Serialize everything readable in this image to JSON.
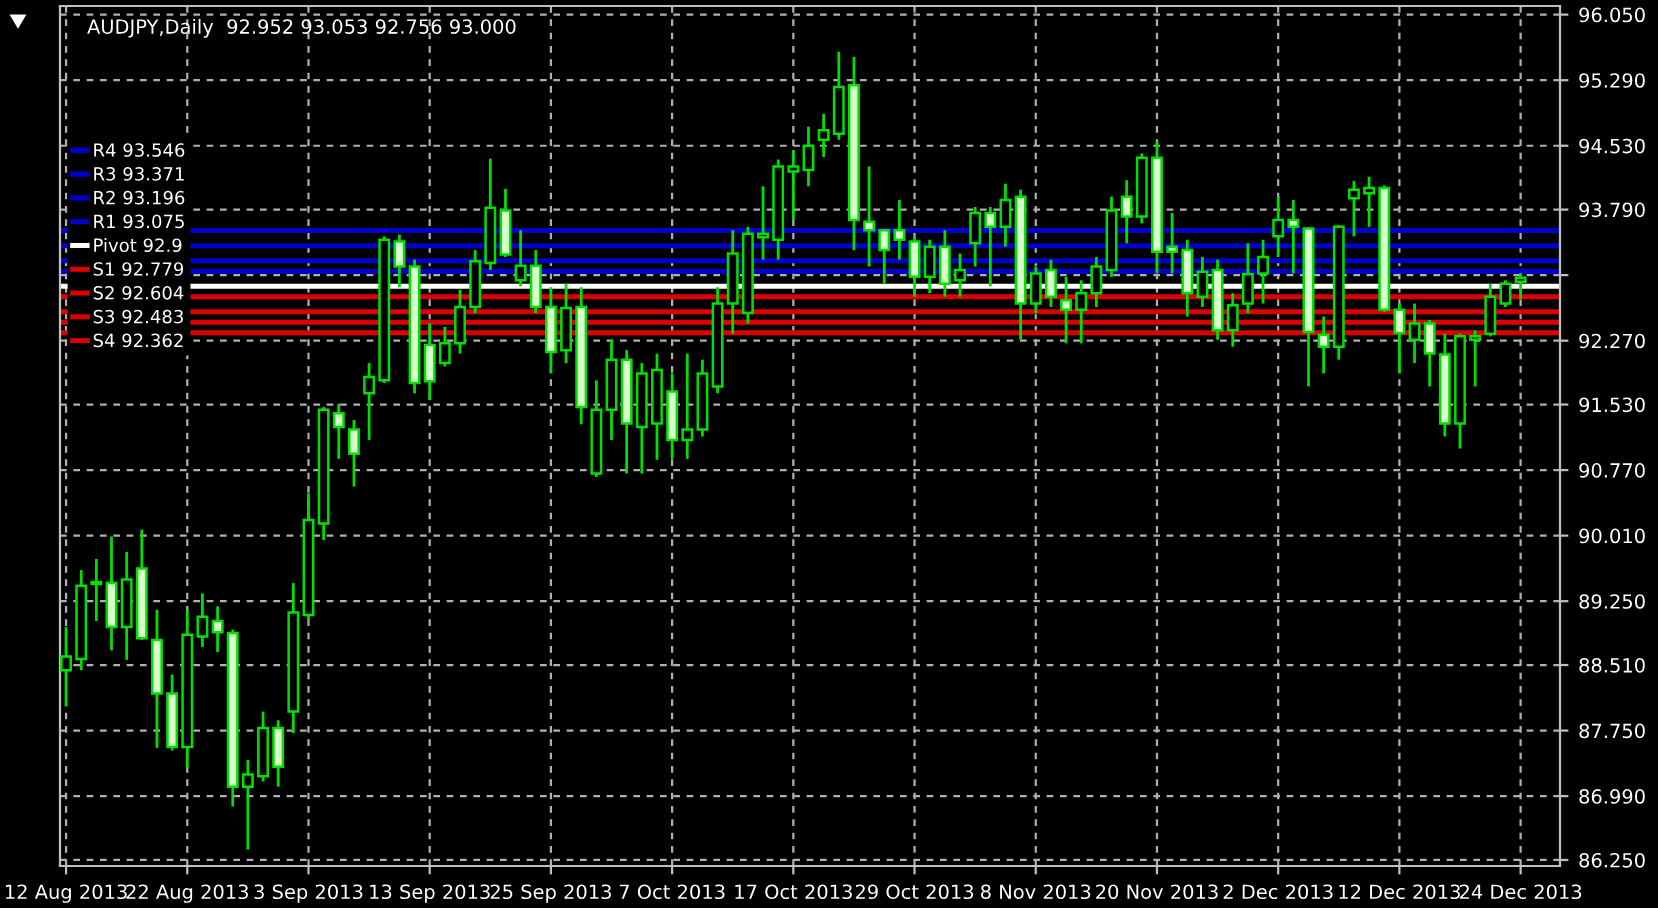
{
  "chart_data": {
    "type": "candlestick",
    "title": "AUDJPY,Daily  92.952 93.053 92.756 93.000",
    "color": "#00e000",
    "categories": [
      "12 Aug 2013",
      null,
      null,
      null,
      null,
      null,
      null,
      null,
      "22 Aug 2013",
      null,
      null,
      null,
      null,
      null,
      null,
      null,
      "3 Sep 2013",
      null,
      null,
      null,
      null,
      null,
      null,
      null,
      "13 Sep 2013",
      null,
      null,
      null,
      null,
      null,
      null,
      null,
      "25 Sep 2013",
      null,
      null,
      null,
      null,
      null,
      null,
      null,
      "7 Oct 2013",
      null,
      null,
      null,
      null,
      null,
      null,
      null,
      "17 Oct 2013",
      null,
      null,
      null,
      null,
      null,
      null,
      null,
      "29 Oct 2013",
      null,
      null,
      null,
      null,
      null,
      null,
      null,
      "8 Nov 2013",
      null,
      null,
      null,
      null,
      null,
      null,
      null,
      "20 Nov 2013",
      null,
      null,
      null,
      null,
      null,
      null,
      null,
      "2 Dec 2013",
      null,
      null,
      null,
      null,
      null,
      null,
      null,
      "12 Dec 2013",
      null,
      null,
      null,
      null,
      null,
      null,
      null,
      "24 Dec 2013"
    ],
    "ohlc": [
      [
        88.45,
        88.95,
        88.03,
        88.61
      ],
      [
        88.58,
        89.61,
        88.45,
        89.43
      ],
      [
        89.45,
        89.74,
        89.02,
        89.47
      ],
      [
        89.46,
        90.0,
        88.68,
        88.95
      ],
      [
        88.95,
        89.82,
        88.57,
        89.5
      ],
      [
        89.63,
        90.08,
        88.8,
        88.82
      ],
      [
        88.8,
        89.15,
        87.55,
        88.18
      ],
      [
        88.18,
        88.4,
        87.52,
        87.56
      ],
      [
        87.56,
        89.15,
        87.32,
        88.86
      ],
      [
        88.84,
        89.34,
        88.72,
        89.07
      ],
      [
        89.02,
        89.19,
        88.66,
        88.89
      ],
      [
        88.88,
        88.92,
        86.87,
        87.1
      ],
      [
        87.1,
        87.41,
        86.37,
        87.24
      ],
      [
        87.22,
        87.97,
        87.16,
        87.78
      ],
      [
        87.78,
        87.87,
        87.1,
        87.33
      ],
      [
        87.97,
        89.46,
        87.72,
        89.12
      ],
      [
        89.09,
        90.5,
        89.03,
        90.19
      ],
      [
        90.15,
        91.5,
        89.96,
        91.47
      ],
      [
        91.43,
        91.54,
        90.9,
        91.27
      ],
      [
        91.24,
        91.35,
        90.58,
        90.96
      ],
      [
        91.66,
        92.01,
        91.12,
        91.85
      ],
      [
        91.81,
        93.48,
        91.78,
        93.44
      ],
      [
        93.42,
        93.5,
        92.89,
        93.13
      ],
      [
        93.13,
        93.21,
        91.66,
        91.78
      ],
      [
        92.22,
        92.47,
        91.58,
        91.8
      ],
      [
        92.01,
        92.43,
        91.97,
        92.24
      ],
      [
        92.24,
        92.86,
        92.12,
        92.66
      ],
      [
        92.66,
        93.32,
        92.59,
        93.19
      ],
      [
        93.17,
        94.38,
        93.09,
        93.81
      ],
      [
        93.78,
        94.03,
        93.24,
        93.27
      ],
      [
        92.97,
        93.55,
        92.9,
        93.14
      ],
      [
        93.14,
        93.32,
        92.59,
        92.66
      ],
      [
        92.66,
        92.89,
        91.89,
        92.14
      ],
      [
        92.16,
        92.93,
        92.01,
        92.65
      ],
      [
        92.66,
        92.89,
        91.3,
        91.5
      ],
      [
        90.73,
        91.81,
        90.69,
        91.47
      ],
      [
        91.47,
        92.28,
        91.12,
        92.05
      ],
      [
        92.05,
        92.16,
        90.73,
        91.31
      ],
      [
        91.27,
        92.01,
        90.73,
        91.89
      ],
      [
        91.31,
        92.12,
        90.89,
        91.93
      ],
      [
        91.68,
        91.89,
        90.9,
        91.12
      ],
      [
        91.12,
        92.12,
        90.9,
        91.24
      ],
      [
        91.24,
        92.05,
        91.16,
        91.89
      ],
      [
        91.74,
        92.89,
        91.66,
        92.7
      ],
      [
        92.7,
        93.55,
        92.35,
        93.28
      ],
      [
        92.59,
        93.59,
        92.47,
        93.51
      ],
      [
        93.47,
        94.06,
        93.21,
        93.51
      ],
      [
        93.44,
        94.37,
        93.21,
        94.29
      ],
      [
        94.23,
        94.48,
        93.67,
        94.29
      ],
      [
        94.25,
        94.75,
        94.06,
        94.53
      ],
      [
        94.6,
        94.9,
        94.4,
        94.71
      ],
      [
        94.67,
        95.62,
        94.6,
        95.21
      ],
      [
        95.23,
        95.56,
        93.32,
        93.67
      ],
      [
        93.65,
        94.29,
        93.13,
        93.55
      ],
      [
        93.55,
        93.55,
        92.93,
        93.32
      ],
      [
        93.55,
        93.9,
        93.21,
        93.44
      ],
      [
        93.42,
        93.48,
        92.78,
        93.01
      ],
      [
        93.01,
        93.44,
        92.82,
        93.36
      ],
      [
        93.36,
        93.55,
        92.78,
        92.93
      ],
      [
        92.97,
        93.28,
        92.78,
        93.09
      ],
      [
        93.4,
        93.82,
        93.13,
        93.75
      ],
      [
        93.75,
        93.82,
        92.9,
        93.59
      ],
      [
        93.59,
        94.09,
        93.36,
        93.9
      ],
      [
        93.94,
        94.02,
        92.28,
        92.7
      ],
      [
        92.7,
        93.13,
        92.59,
        93.05
      ],
      [
        93.09,
        93.21,
        92.66,
        92.78
      ],
      [
        92.74,
        93.01,
        92.24,
        92.63
      ],
      [
        92.63,
        92.97,
        92.24,
        92.82
      ],
      [
        92.82,
        93.24,
        92.66,
        93.13
      ],
      [
        93.09,
        93.94,
        93.01,
        93.78
      ],
      [
        93.94,
        94.13,
        93.4,
        93.71
      ],
      [
        93.71,
        94.44,
        93.63,
        94.39
      ],
      [
        94.39,
        94.58,
        93.05,
        93.3
      ],
      [
        93.36,
        93.75,
        93.05,
        93.3
      ],
      [
        93.32,
        93.44,
        92.55,
        92.82
      ],
      [
        92.78,
        93.24,
        92.66,
        93.07
      ],
      [
        93.09,
        93.21,
        92.28,
        92.39
      ],
      [
        92.39,
        92.82,
        92.2,
        92.68
      ],
      [
        92.7,
        93.4,
        92.59,
        93.04
      ],
      [
        93.05,
        93.44,
        92.7,
        93.24
      ],
      [
        93.48,
        93.94,
        93.24,
        93.67
      ],
      [
        93.67,
        93.9,
        93.05,
        93.59
      ],
      [
        93.57,
        93.59,
        91.74,
        92.37
      ],
      [
        92.34,
        92.55,
        91.89,
        92.2
      ],
      [
        92.2,
        93.61,
        92.05,
        93.59
      ],
      [
        93.92,
        94.12,
        93.48,
        94.02
      ],
      [
        93.98,
        94.17,
        93.59,
        94.04
      ],
      [
        94.04,
        94.07,
        92.6,
        92.63
      ],
      [
        92.63,
        92.7,
        91.89,
        92.36
      ],
      [
        92.28,
        92.7,
        92.01,
        92.47
      ],
      [
        92.47,
        92.51,
        91.74,
        92.12
      ],
      [
        92.11,
        92.35,
        91.16,
        91.31
      ],
      [
        91.31,
        92.35,
        91.02,
        92.32
      ],
      [
        92.28,
        92.39,
        91.74,
        92.32
      ],
      [
        92.35,
        92.93,
        92.32,
        92.78
      ],
      [
        92.7,
        92.97,
        92.66,
        92.93
      ],
      [
        92.952,
        93.053,
        92.756,
        93.0
      ]
    ],
    "ylim": [
      86.18,
      96.15
    ],
    "yticks": [
      {
        "value": 96.05,
        "label": "96.050"
      },
      {
        "value": 95.29,
        "label": "95.290"
      },
      {
        "value": 94.53,
        "label": "94.530"
      },
      {
        "value": 93.79,
        "label": "93.790"
      },
      {
        "value": 93.03,
        "label": null
      },
      {
        "value": 92.27,
        "label": "92.270"
      },
      {
        "value": 91.53,
        "label": "91.530"
      },
      {
        "value": 90.77,
        "label": "90.770"
      },
      {
        "value": 90.01,
        "label": "90.010"
      },
      {
        "value": 89.25,
        "label": "89.250"
      },
      {
        "value": 88.51,
        "label": "88.510"
      },
      {
        "value": 87.75,
        "label": "87.750"
      },
      {
        "value": 86.99,
        "label": "86.990"
      },
      {
        "value": 86.25,
        "label": "86.250"
      }
    ],
    "grid": true,
    "legend": "left",
    "ref_lines": [
      {
        "axis": "y",
        "value": 93.546,
        "label": "R4 93.546",
        "color": "#0000cc"
      },
      {
        "axis": "y",
        "value": 93.371,
        "label": "R3 93.371",
        "color": "#0000cc"
      },
      {
        "axis": "y",
        "value": 93.196,
        "label": "R2 93.196",
        "color": "#0000cc"
      },
      {
        "axis": "y",
        "value": 93.075,
        "label": "R1 93.075",
        "color": "#0000cc"
      },
      {
        "axis": "y",
        "value": 92.9,
        "label": "Pivot 92.9",
        "color": "#ffffff"
      },
      {
        "axis": "y",
        "value": 92.779,
        "label": "S1 92.779",
        "color": "#dd0000"
      },
      {
        "axis": "y",
        "value": 92.604,
        "label": "S2 92.604",
        "color": "#dd0000"
      },
      {
        "axis": "y",
        "value": 92.483,
        "label": "S3 92.483",
        "color": "#dd0000"
      },
      {
        "axis": "y",
        "value": 92.362,
        "label": "S4 92.362",
        "color": "#dd0000"
      }
    ]
  }
}
